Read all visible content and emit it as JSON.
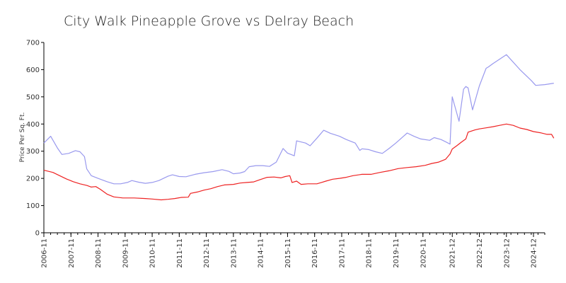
{
  "chart_data": {
    "type": "line",
    "title": "City Walk Pineapple Grove vs Delray Beach",
    "xlabel": "",
    "ylabel": "Price Per Sq. Ft.",
    "ylim": [
      0,
      700
    ],
    "xlim": [
      "2006-11",
      "2025-05"
    ],
    "yticks": [
      0,
      100,
      200,
      300,
      400,
      500,
      600,
      700
    ],
    "xticks": [
      "2006-11",
      "2007-11",
      "2008-11",
      "2009-11",
      "2010-11",
      "2011-11",
      "2012-11",
      "2013-11",
      "2014-11",
      "2015-11",
      "2016-11",
      "2017-11",
      "2018-11",
      "2019-11",
      "2020-11",
      "2021-12",
      "2022-12",
      "2023-12",
      "2024-12"
    ],
    "grid": false,
    "legend": "none",
    "series": [
      {
        "color": "#9999ee",
        "points": [
          [
            "2006-11",
            330
          ],
          [
            "2007-02",
            355
          ],
          [
            "2007-05",
            312
          ],
          [
            "2007-07",
            288
          ],
          [
            "2007-10",
            292
          ],
          [
            "2008-01",
            302
          ],
          [
            "2008-03",
            298
          ],
          [
            "2008-05",
            280
          ],
          [
            "2008-06",
            235
          ],
          [
            "2008-08",
            210
          ],
          [
            "2008-11",
            200
          ],
          [
            "2009-03",
            188
          ],
          [
            "2009-06",
            180
          ],
          [
            "2009-09",
            180
          ],
          [
            "2009-12",
            185
          ],
          [
            "2010-02",
            192
          ],
          [
            "2010-05",
            186
          ],
          [
            "2010-08",
            182
          ],
          [
            "2010-11",
            185
          ],
          [
            "2011-02",
            192
          ],
          [
            "2011-06",
            208
          ],
          [
            "2011-08",
            213
          ],
          [
            "2011-11",
            207
          ],
          [
            "2012-02",
            206
          ],
          [
            "2012-06",
            215
          ],
          [
            "2012-10",
            221
          ],
          [
            "2013-02",
            225
          ],
          [
            "2013-06",
            232
          ],
          [
            "2013-09",
            226
          ],
          [
            "2013-11",
            217
          ],
          [
            "2014-02",
            220
          ],
          [
            "2014-04",
            225
          ],
          [
            "2014-06",
            243
          ],
          [
            "2014-09",
            247
          ],
          [
            "2014-12",
            247
          ],
          [
            "2015-03",
            244
          ],
          [
            "2015-06",
            260
          ],
          [
            "2015-09",
            310
          ],
          [
            "2015-11",
            293
          ],
          [
            "2016-02",
            283
          ],
          [
            "2016-03",
            338
          ],
          [
            "2016-07",
            330
          ],
          [
            "2016-09",
            320
          ],
          [
            "2016-12",
            348
          ],
          [
            "2017-03",
            377
          ],
          [
            "2017-06",
            366
          ],
          [
            "2017-10",
            355
          ],
          [
            "2018-01",
            343
          ],
          [
            "2018-05",
            330
          ],
          [
            "2018-07",
            303
          ],
          [
            "2018-08",
            309
          ],
          [
            "2018-11",
            306
          ],
          [
            "2019-02",
            298
          ],
          [
            "2019-05",
            292
          ],
          [
            "2019-08",
            310
          ],
          [
            "2019-11",
            330
          ],
          [
            "2020-02",
            352
          ],
          [
            "2020-04",
            367
          ],
          [
            "2020-07",
            355
          ],
          [
            "2020-10",
            345
          ],
          [
            "2021-02",
            340
          ],
          [
            "2021-04",
            350
          ],
          [
            "2021-07",
            343
          ],
          [
            "2021-09",
            335
          ],
          [
            "2021-11",
            326
          ],
          [
            "2021-12",
            500
          ],
          [
            "2022-03",
            410
          ],
          [
            "2022-05",
            528
          ],
          [
            "2022-06",
            538
          ],
          [
            "2022-07",
            533
          ],
          [
            "2022-09",
            452
          ],
          [
            "2022-12",
            540
          ],
          [
            "2023-03",
            605
          ],
          [
            "2023-04",
            610
          ],
          [
            "2023-06",
            622
          ],
          [
            "2023-12",
            655
          ],
          [
            "2024-06",
            600
          ],
          [
            "2024-11",
            560
          ],
          [
            "2025-01",
            542
          ],
          [
            "2025-05",
            545
          ],
          [
            "2025-09",
            550
          ]
        ]
      },
      {
        "color": "#ee2222",
        "points": [
          [
            "2006-11",
            230
          ],
          [
            "2007-03",
            222
          ],
          [
            "2007-06",
            210
          ],
          [
            "2007-09",
            198
          ],
          [
            "2007-12",
            188
          ],
          [
            "2008-03",
            180
          ],
          [
            "2008-06",
            174
          ],
          [
            "2008-08",
            168
          ],
          [
            "2008-10",
            170
          ],
          [
            "2008-12",
            160
          ],
          [
            "2009-03",
            142
          ],
          [
            "2009-06",
            132
          ],
          [
            "2009-10",
            128
          ],
          [
            "2010-03",
            128
          ],
          [
            "2010-08",
            126
          ],
          [
            "2010-11",
            124
          ],
          [
            "2011-03",
            121
          ],
          [
            "2011-06",
            123
          ],
          [
            "2011-09",
            126
          ],
          [
            "2011-12",
            130
          ],
          [
            "2012-03",
            131
          ],
          [
            "2012-04",
            145
          ],
          [
            "2012-07",
            150
          ],
          [
            "2012-10",
            157
          ],
          [
            "2013-01",
            162
          ],
          [
            "2013-04",
            170
          ],
          [
            "2013-07",
            176
          ],
          [
            "2013-11",
            178
          ],
          [
            "2014-02",
            183
          ],
          [
            "2014-05",
            185
          ],
          [
            "2014-08",
            187
          ],
          [
            "2014-11",
            196
          ],
          [
            "2015-02",
            204
          ],
          [
            "2015-05",
            205
          ],
          [
            "2015-08",
            202
          ],
          [
            "2015-10",
            207
          ],
          [
            "2015-12",
            210
          ],
          [
            "2016-01",
            185
          ],
          [
            "2016-03",
            190
          ],
          [
            "2016-05",
            178
          ],
          [
            "2016-08",
            180
          ],
          [
            "2016-12",
            180
          ],
          [
            "2017-02",
            185
          ],
          [
            "2017-04",
            190
          ],
          [
            "2017-07",
            197
          ],
          [
            "2017-10",
            200
          ],
          [
            "2018-01",
            204
          ],
          [
            "2018-04",
            210
          ],
          [
            "2018-08",
            215
          ],
          [
            "2018-12",
            215
          ],
          [
            "2019-04",
            222
          ],
          [
            "2019-08",
            228
          ],
          [
            "2019-12",
            236
          ],
          [
            "2020-04",
            240
          ],
          [
            "2020-08",
            243
          ],
          [
            "2020-12",
            248
          ],
          [
            "2021-03",
            255
          ],
          [
            "2021-06",
            260
          ],
          [
            "2021-09",
            270
          ],
          [
            "2021-11",
            290
          ],
          [
            "2021-12",
            308
          ],
          [
            "2022-02",
            320
          ],
          [
            "2022-04",
            333
          ],
          [
            "2022-06",
            345
          ],
          [
            "2022-07",
            370
          ],
          [
            "2022-10",
            378
          ],
          [
            "2022-12",
            382
          ],
          [
            "2023-03",
            386
          ],
          [
            "2023-06",
            390
          ],
          [
            "2023-09",
            395
          ],
          [
            "2023-12",
            400
          ],
          [
            "2024-03",
            395
          ],
          [
            "2024-06",
            385
          ],
          [
            "2024-09",
            380
          ],
          [
            "2024-12",
            372
          ],
          [
            "2025-03",
            368
          ],
          [
            "2025-06",
            362
          ],
          [
            "2025-08",
            362
          ],
          [
            "2025-09",
            348
          ]
        ]
      }
    ]
  }
}
